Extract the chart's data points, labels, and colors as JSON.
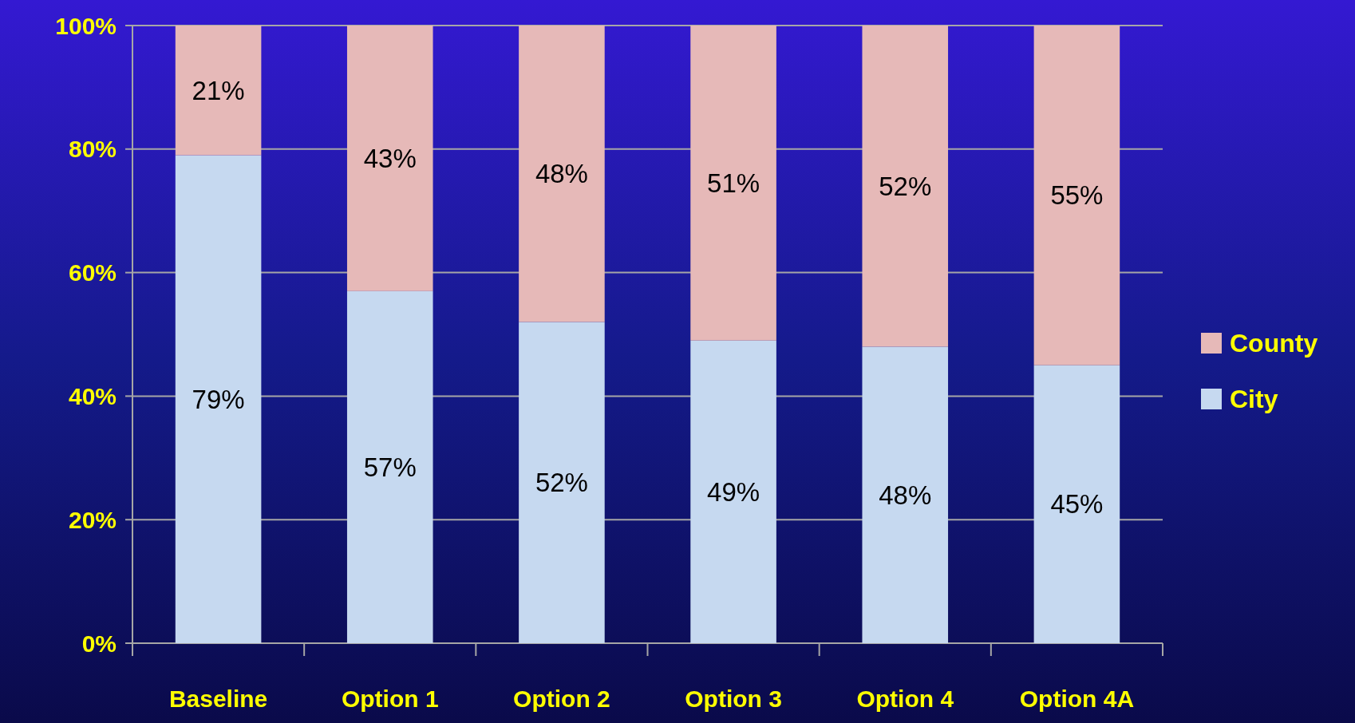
{
  "chart_data": {
    "type": "bar",
    "stacked": true,
    "categories": [
      "Baseline",
      "Option 1",
      "Option 2",
      "Option 3",
      "Option 4",
      "Option 4A"
    ],
    "series": [
      {
        "name": "City",
        "color": "#c6d9f0",
        "values": [
          79,
          57,
          52,
          49,
          48,
          45
        ],
        "value_labels": [
          "79%",
          "57%",
          "52%",
          "49%",
          "48%",
          "45%"
        ]
      },
      {
        "name": "County",
        "color": "#e6b9b8",
        "values": [
          21,
          43,
          48,
          51,
          52,
          55
        ],
        "value_labels": [
          "21%",
          "43%",
          "48%",
          "51%",
          "52%",
          "55%"
        ]
      }
    ],
    "ylim": [
      0,
      100
    ],
    "yticks": [
      {
        "value": 0,
        "label": "0%"
      },
      {
        "value": 20,
        "label": "20%"
      },
      {
        "value": 40,
        "label": "40%"
      },
      {
        "value": 60,
        "label": "60%"
      },
      {
        "value": 80,
        "label": "80%"
      },
      {
        "value": 100,
        "label": "100%"
      }
    ],
    "grid": "y",
    "legend": "right"
  }
}
